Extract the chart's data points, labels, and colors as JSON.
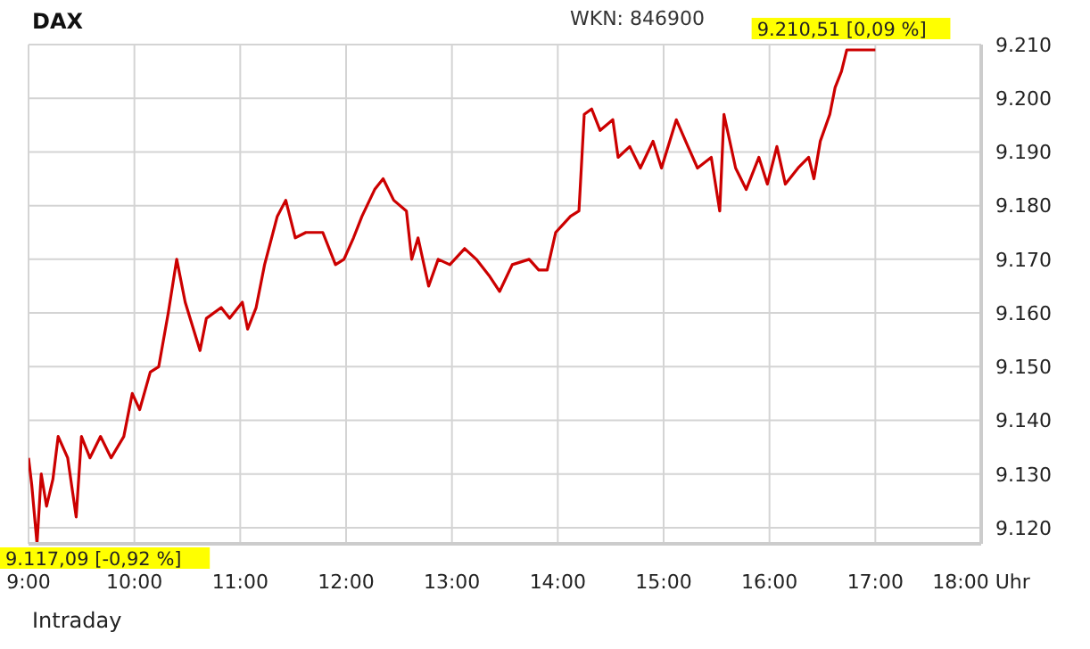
{
  "chart_data": {
    "type": "line",
    "title": "DAX",
    "xlim": [
      9,
      18
    ],
    "ylim": [
      9117,
      9210
    ],
    "xticks": [
      {
        "value": 9,
        "label": "9:00"
      },
      {
        "value": 10,
        "label": "10:00"
      },
      {
        "value": 11,
        "label": "11:00"
      },
      {
        "value": 12,
        "label": "12:00"
      },
      {
        "value": 13,
        "label": "13:00"
      },
      {
        "value": 14,
        "label": "14:00"
      },
      {
        "value": 15,
        "label": "15:00"
      },
      {
        "value": 16,
        "label": "16:00"
      },
      {
        "value": 17,
        "label": "17:00"
      },
      {
        "value": 18,
        "label": "18:00 Uhr"
      }
    ],
    "yticks": [
      {
        "value": 9120,
        "label": "9.120"
      },
      {
        "value": 9130,
        "label": "9.130"
      },
      {
        "value": 9140,
        "label": "9.140"
      },
      {
        "value": 9150,
        "label": "9.150"
      },
      {
        "value": 9160,
        "label": "9.160"
      },
      {
        "value": 9170,
        "label": "9.170"
      },
      {
        "value": 9180,
        "label": "9.180"
      },
      {
        "value": 9190,
        "label": "9.190"
      },
      {
        "value": 9200,
        "label": "9.200"
      },
      {
        "value": 9210,
        "label": "9.210"
      }
    ],
    "grid": true,
    "legend": false,
    "marker": "none",
    "line_style": "solid",
    "x": [
      9.0,
      9.03,
      9.08,
      9.12,
      9.17,
      9.23,
      9.28,
      9.37,
      9.45,
      9.5,
      9.58,
      9.68,
      9.78,
      9.9,
      9.98,
      10.05,
      10.15,
      10.23,
      10.32,
      10.4,
      10.48,
      10.62,
      10.68,
      10.82,
      10.9,
      11.02,
      11.07,
      11.15,
      11.23,
      11.35,
      11.43,
      11.52,
      11.62,
      11.78,
      11.9,
      11.98,
      12.07,
      12.15,
      12.27,
      12.35,
      12.45,
      12.57,
      12.62,
      12.68,
      12.78,
      12.87,
      12.98,
      13.12,
      13.23,
      13.35,
      13.45,
      13.57,
      13.73,
      13.82,
      13.9,
      13.98,
      14.12,
      14.2,
      14.25,
      14.32,
      14.4,
      14.52,
      14.57,
      14.68,
      14.78,
      14.9,
      14.98,
      15.12,
      15.23,
      15.32,
      15.45,
      15.53,
      15.57,
      15.68,
      15.78,
      15.9,
      15.98,
      16.07,
      16.15,
      16.27,
      16.37,
      16.42,
      16.48,
      16.57,
      16.62,
      16.68,
      16.73,
      16.77,
      17.0
    ],
    "series": [
      {
        "color": "#cc0000",
        "values": [
          9133,
          9128,
          9117,
          9130,
          9124,
          9129,
          9137,
          9133,
          9122,
          9137,
          9133,
          9137,
          9133,
          9137,
          9145,
          9142,
          9149,
          9150,
          9160,
          9170,
          9162,
          9153,
          9159,
          9161,
          9159,
          9162,
          9157,
          9161,
          9169,
          9178,
          9181,
          9174,
          9175,
          9175,
          9169,
          9170,
          9174,
          9178,
          9183,
          9185,
          9181,
          9179,
          9170,
          9174,
          9165,
          9170,
          9169,
          9172,
          9170,
          9167,
          9164,
          9169,
          9170,
          9168,
          9168,
          9175,
          9178,
          9179,
          9197,
          9198,
          9194,
          9196,
          9189,
          9191,
          9187,
          9192,
          9187,
          9196,
          9191,
          9187,
          9189,
          9179,
          9197,
          9187,
          9183,
          9189,
          9184,
          9191,
          9184,
          9187,
          9189,
          9185,
          9192,
          9197,
          9202,
          9205,
          9209,
          9209,
          9209
        ]
      }
    ],
    "annotations": [
      "WKN: 846900",
      {
        "text": "9.210,51 [0,09 %]",
        "x": 16.77,
        "y": 9209
      },
      {
        "text": "9.117,09 [-0,92 %]",
        "x": 9.08,
        "y": 9117
      },
      "Intraday"
    ]
  }
}
